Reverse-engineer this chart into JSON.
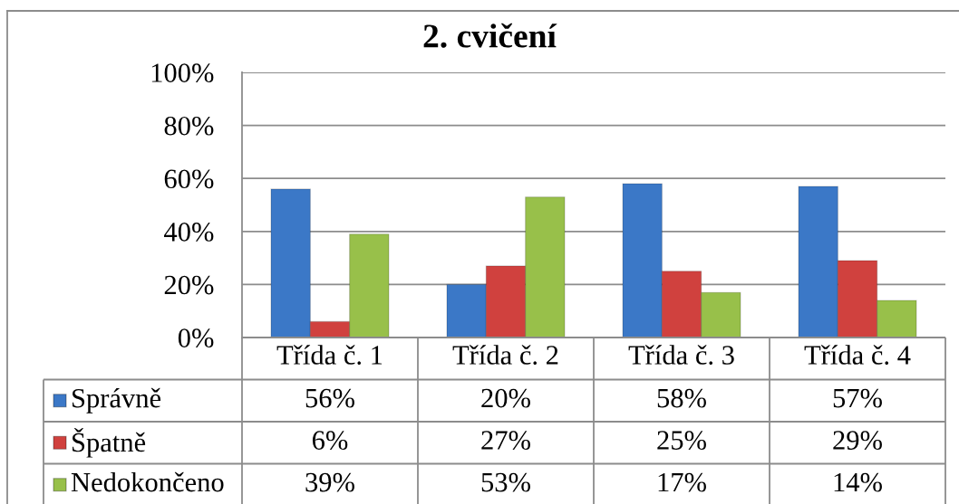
{
  "chart_data": {
    "type": "bar",
    "title": "2. cvičení",
    "categories": [
      "Třída č. 1",
      "Třída č. 2",
      "Třída č. 3",
      "Třída č. 4"
    ],
    "series": [
      {
        "name": "Správně",
        "color": "#3b78c7",
        "values": [
          56,
          20,
          58,
          57
        ],
        "value_labels": [
          "56%",
          "20%",
          "58%",
          "57%"
        ]
      },
      {
        "name": "Špatně",
        "color": "#d0413e",
        "values": [
          6,
          27,
          25,
          29
        ],
        "value_labels": [
          "6%",
          "27%",
          "25%",
          "29%"
        ]
      },
      {
        "name": "Nedokončeno",
        "color": "#98c04a",
        "values": [
          39,
          53,
          17,
          14
        ],
        "value_labels": [
          "39%",
          "53%",
          "17%",
          "14%"
        ]
      }
    ],
    "ylim": [
      0,
      100
    ],
    "yticks": [
      {
        "value": 0,
        "label": "0%"
      },
      {
        "value": 20,
        "label": "20%"
      },
      {
        "value": 40,
        "label": "40%"
      },
      {
        "value": 60,
        "label": "60%"
      },
      {
        "value": 80,
        "label": "80%"
      },
      {
        "value": 100,
        "label": "100%"
      }
    ],
    "grid": "y",
    "legend": "bottom"
  }
}
